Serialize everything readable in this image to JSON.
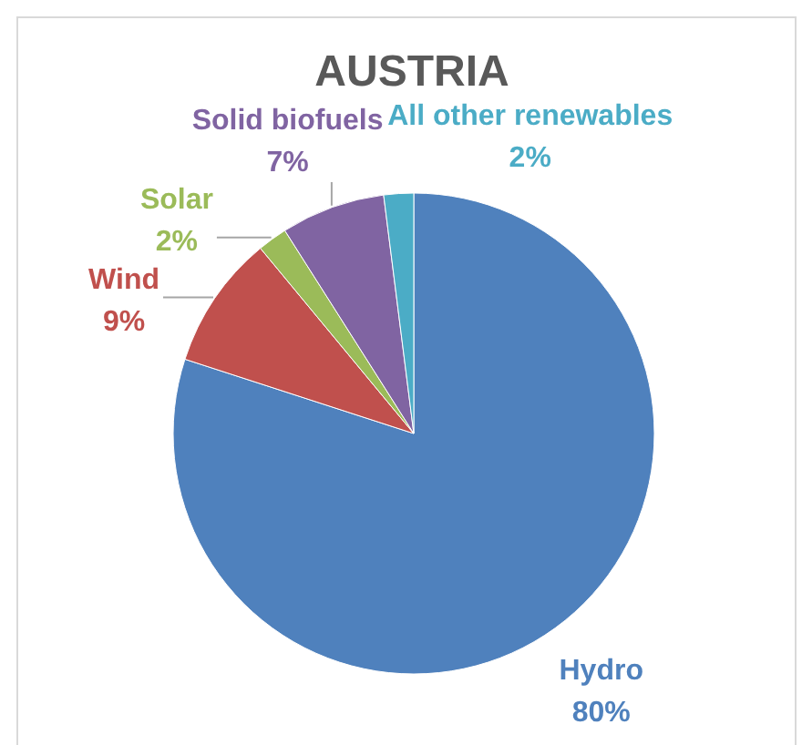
{
  "chart_data": {
    "type": "pie",
    "title": "AUSTRIA",
    "categories": [
      "Hydro",
      "Wind",
      "Solar",
      "Solid biofuels",
      "All other renewables"
    ],
    "values": [
      80,
      9,
      2,
      7,
      2
    ],
    "colors": [
      "#4f81bd",
      "#c0504d",
      "#9bbb59",
      "#8064a2",
      "#4bacc6"
    ],
    "value_labels": [
      "80%",
      "9%",
      "2%",
      "7%",
      "2%"
    ]
  }
}
